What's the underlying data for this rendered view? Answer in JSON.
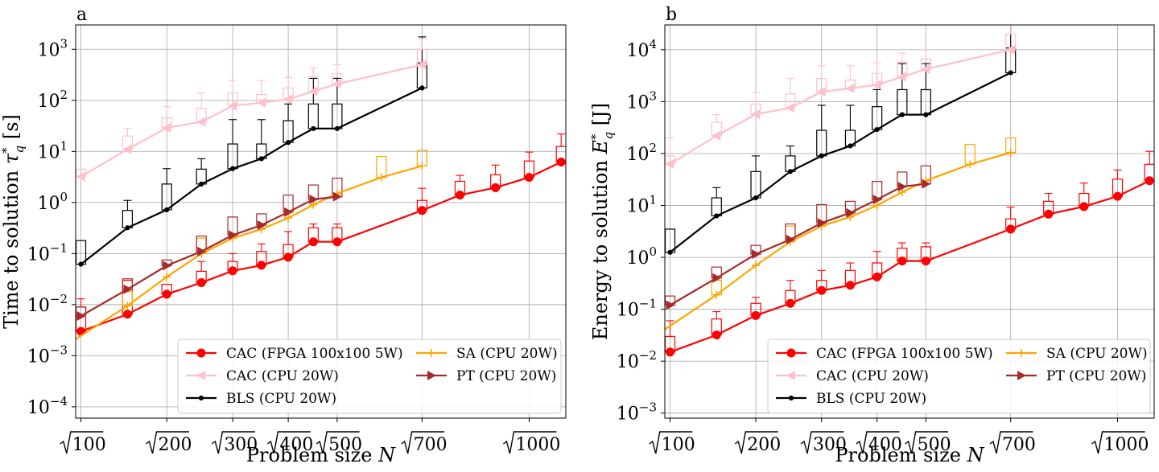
{
  "chart_data": [
    {
      "type": "line",
      "panel_label": "a",
      "ylabel": "Time to solution τ*_q [s]",
      "ylabel_text": "Time to solution ",
      "ylabel_tau": "τ",
      "ylabel_sup": "*",
      "ylabel_sub": "q",
      "ylabel_unit": " [s]",
      "xlabel_text": "Problem size ",
      "xlabel_var": "N",
      "yscale": "log",
      "ylim": [
        6e-05,
        3000
      ],
      "yticks": [
        {
          "value": 0.0001,
          "base": "10",
          "exp": "−4"
        },
        {
          "value": 0.001,
          "base": "10",
          "exp": "−3"
        },
        {
          "value": 0.01,
          "base": "10",
          "exp": "−2"
        },
        {
          "value": 0.1,
          "base": "10",
          "exp": "−1"
        },
        {
          "value": 1,
          "base": "10",
          "exp": "0"
        },
        {
          "value": 10,
          "base": "10",
          "exp": "1"
        },
        {
          "value": 100,
          "base": "10",
          "exp": "2"
        },
        {
          "value": 1000,
          "base": "10",
          "exp": "3"
        }
      ],
      "xscale": "sqrt",
      "xlim": [
        95,
        1115
      ],
      "xticks": [
        {
          "value": 100,
          "label": "100"
        },
        {
          "value": 200,
          "label": "200"
        },
        {
          "value": 300,
          "label": "300"
        },
        {
          "value": 400,
          "label": "400"
        },
        {
          "value": 500,
          "label": "500"
        },
        {
          "value": 700,
          "label": "700"
        },
        {
          "value": 1000,
          "label": "1000"
        }
      ],
      "grid": true,
      "legend_position": "bottom-right",
      "series": [
        {
          "name": "CAC (FPGA 100x100 5W)",
          "color": "#ff0000",
          "marker": "circle",
          "x": [
            100,
            150,
            200,
            250,
            300,
            350,
            400,
            450,
            500,
            700,
            800,
            900,
            1000,
            1100
          ],
          "y": [
            0.003,
            0.0065,
            0.016,
            0.027,
            0.046,
            0.059,
            0.085,
            0.17,
            0.17,
            0.7,
            1.4,
            1.95,
            3.1,
            6.2
          ]
        },
        {
          "name": "CAC (CPU 20W)",
          "color": "#ffc0cb",
          "marker": "triangle-left",
          "x": [
            100,
            150,
            200,
            250,
            300,
            350,
            400,
            450,
            500,
            700
          ],
          "y": [
            3.2,
            11,
            29,
            38,
            78,
            90,
            105,
            150,
            210,
            500
          ]
        },
        {
          "name": "BLS (CPU 20W)",
          "color": "#000000",
          "marker": "small-circle",
          "x": [
            100,
            150,
            200,
            250,
            300,
            350,
            400,
            450,
            500,
            700
          ],
          "y": [
            0.062,
            0.32,
            0.72,
            2.3,
            4.6,
            7.2,
            15,
            28,
            28,
            175
          ]
        },
        {
          "name": "SA (CPU 20W)",
          "color": "#ffa500",
          "marker": "plus",
          "x": [
            90,
            150,
            200,
            250,
            300,
            350,
            400,
            450,
            500,
            600,
            700
          ],
          "y": [
            0.0018,
            0.0095,
            0.035,
            0.1,
            0.2,
            0.3,
            0.5,
            0.9,
            1.5,
            3.1,
            5.2
          ]
        },
        {
          "name": "PT (CPU 20W)",
          "color": "#a52a2a",
          "marker": "triangle-right",
          "x": [
            100,
            150,
            200,
            250,
            300,
            350,
            400,
            450,
            500
          ],
          "y": [
            0.006,
            0.02,
            0.058,
            0.11,
            0.23,
            0.36,
            0.65,
            1.15,
            1.3
          ]
        }
      ],
      "boxes": [
        {
          "color": "#000000",
          "x": [
            100,
            150,
            200,
            250,
            300,
            350,
            400,
            450,
            500,
            700
          ],
          "q1": [
            0.062,
            0.32,
            0.72,
            2.3,
            4.6,
            7.2,
            15,
            28,
            28,
            175
          ],
          "q3": [
            0.18,
            0.7,
            2.3,
            4.5,
            14,
            14,
            40,
            85,
            85,
            540
          ],
          "whisker": [
            null,
            1.1,
            4.6,
            7.2,
            42,
            42,
            85,
            270,
            270,
            1750
          ]
        },
        {
          "color": "#ffc0cb",
          "x": [
            100,
            150,
            200,
            250,
            300,
            350,
            400,
            450,
            500,
            700
          ],
          "q1": [
            3.2,
            11,
            29,
            38,
            78,
            90,
            105,
            150,
            210,
            500
          ],
          "q3": [
            4.5,
            20,
            45,
            70,
            140,
            130,
            175,
            290,
            330,
            1000
          ],
          "whisker": [
            null,
            28,
            75,
            140,
            245,
            245,
            280,
            430,
            500,
            1600
          ]
        },
        {
          "color": "#ff0000",
          "x": [
            100,
            150,
            200,
            250,
            300,
            350,
            400,
            450,
            500,
            700,
            800,
            900,
            1000,
            1100
          ],
          "q1": [
            0.003,
            0.0065,
            0.016,
            0.027,
            0.046,
            0.059,
            0.085,
            0.17,
            0.17,
            0.7,
            1.4,
            1.95,
            3.1,
            6.2
          ],
          "q3": [
            0.009,
            0.03,
            0.025,
            0.045,
            0.07,
            0.11,
            0.15,
            0.32,
            0.32,
            1.1,
            2.6,
            3.5,
            6.5,
            12.5
          ],
          "whisker": [
            0.013,
            null,
            null,
            0.07,
            0.1,
            0.155,
            0.27,
            0.38,
            0.38,
            1.9,
            3.4,
            5.4,
            9.7,
            22
          ]
        },
        {
          "color": "#ffa500",
          "x": [
            150,
            250,
            600,
            700
          ],
          "q1": [
            0.0095,
            0.1,
            3.1,
            5.2
          ],
          "q3": [
            0.018,
            0.2,
            8,
            10.5
          ],
          "whisker": [
            null,
            null,
            null,
            null
          ]
        },
        {
          "color": "#a52a2a",
          "x": [
            100,
            150,
            200,
            250,
            300,
            350,
            400,
            450,
            500
          ],
          "q1": [
            0.006,
            0.02,
            0.058,
            0.11,
            0.23,
            0.36,
            0.65,
            1.15,
            1.3
          ],
          "q3": [
            0.009,
            0.032,
            0.075,
            0.22,
            0.52,
            0.6,
            1.4,
            2.2,
            3
          ],
          "whisker": [
            null,
            null,
            null,
            null,
            null,
            null,
            null,
            null,
            null
          ]
        }
      ]
    },
    {
      "type": "line",
      "panel_label": "b",
      "ylabel": "Energy to solution E*_q [J]",
      "ylabel_text": "Energy to solution ",
      "ylabel_tau": "E",
      "ylabel_sup": "*",
      "ylabel_sub": "q",
      "ylabel_unit": " [J]",
      "xlabel_text": "Problem size ",
      "xlabel_var": "N",
      "yscale": "log",
      "ylim": [
        0.0008,
        30000
      ],
      "yticks": [
        {
          "value": 0.001,
          "base": "10",
          "exp": "−3"
        },
        {
          "value": 0.01,
          "base": "10",
          "exp": "−2"
        },
        {
          "value": 0.1,
          "base": "10",
          "exp": "−1"
        },
        {
          "value": 1,
          "base": "10",
          "exp": "0"
        },
        {
          "value": 10,
          "base": "10",
          "exp": "1"
        },
        {
          "value": 100,
          "base": "10",
          "exp": "2"
        },
        {
          "value": 1000,
          "base": "10",
          "exp": "3"
        },
        {
          "value": 10000,
          "base": "10",
          "exp": "4"
        }
      ],
      "xscale": "sqrt",
      "xlim": [
        95,
        1115
      ],
      "xticks": [
        {
          "value": 100,
          "label": "100"
        },
        {
          "value": 200,
          "label": "200"
        },
        {
          "value": 300,
          "label": "300"
        },
        {
          "value": 400,
          "label": "400"
        },
        {
          "value": 500,
          "label": "500"
        },
        {
          "value": 700,
          "label": "700"
        },
        {
          "value": 1000,
          "label": "1000"
        }
      ],
      "grid": true,
      "legend_position": "bottom-right",
      "series": [
        {
          "name": "CAC (FPGA 100x100 5W)",
          "color": "#ff0000",
          "marker": "circle",
          "x": [
            100,
            150,
            200,
            250,
            300,
            350,
            400,
            450,
            500,
            700,
            800,
            900,
            1000,
            1100
          ],
          "y": [
            0.015,
            0.032,
            0.076,
            0.13,
            0.23,
            0.29,
            0.42,
            0.85,
            0.85,
            3.5,
            6.8,
            9.5,
            15,
            30
          ]
        },
        {
          "name": "CAC (CPU 20W)",
          "color": "#ffc0cb",
          "marker": "triangle-left",
          "x": [
            100,
            150,
            200,
            250,
            300,
            350,
            400,
            450,
            500,
            700
          ],
          "y": [
            63,
            220,
            570,
            760,
            1550,
            1800,
            2100,
            3000,
            4200,
            10000
          ]
        },
        {
          "name": "BLS (CPU 20W)",
          "color": "#000000",
          "marker": "small-circle",
          "x": [
            100,
            150,
            200,
            250,
            300,
            350,
            400,
            450,
            500,
            700
          ],
          "y": [
            1.25,
            6.3,
            14,
            45,
            90,
            140,
            290,
            560,
            560,
            3600
          ]
        },
        {
          "name": "SA (CPU 20W)",
          "color": "#ffa500",
          "marker": "plus",
          "x": [
            90,
            150,
            200,
            250,
            300,
            350,
            400,
            450,
            500,
            600,
            700
          ],
          "y": [
            0.035,
            0.19,
            0.7,
            2,
            4,
            6,
            10,
            18,
            30,
            62,
            104
          ]
        },
        {
          "name": "PT (CPU 20W)",
          "color": "#a52a2a",
          "marker": "triangle-right",
          "x": [
            100,
            150,
            200,
            250,
            300,
            350,
            400,
            450,
            500
          ],
          "y": [
            0.12,
            0.4,
            1.15,
            2.2,
            4.6,
            7.2,
            13,
            23,
            26
          ]
        }
      ],
      "boxes": [
        {
          "color": "#000000",
          "x": [
            100,
            150,
            200,
            250,
            300,
            350,
            400,
            450,
            500,
            700
          ],
          "q1": [
            1.25,
            6.3,
            14,
            45,
            90,
            140,
            290,
            560,
            560,
            3600
          ],
          "q3": [
            3.5,
            14,
            45,
            90,
            280,
            280,
            800,
            1700,
            1700,
            10800
          ],
          "whisker": [
            null,
            22,
            90,
            140,
            850,
            850,
            1700,
            5400,
            5400,
            35000
          ]
        },
        {
          "color": "#ffc0cb",
          "x": [
            100,
            150,
            200,
            250,
            300,
            350,
            400,
            450,
            500,
            700
          ],
          "q1": [
            63,
            220,
            570,
            760,
            1550,
            1800,
            2100,
            3000,
            4200,
            10000
          ],
          "q3": [
            90,
            400,
            900,
            1400,
            2800,
            2600,
            3500,
            5800,
            6600,
            20000
          ],
          "whisker": [
            200,
            560,
            1500,
            2800,
            4900,
            4900,
            5600,
            8600,
            10000,
            32000
          ]
        },
        {
          "color": "#ff0000",
          "x": [
            100,
            150,
            200,
            250,
            300,
            350,
            400,
            450,
            500,
            700,
            800,
            900,
            1000,
            1100
          ],
          "q1": [
            0.015,
            0.032,
            0.076,
            0.13,
            0.23,
            0.29,
            0.42,
            0.85,
            0.85,
            3.5,
            6.8,
            9.5,
            15,
            30
          ],
          "q3": [
            0.03,
            0.065,
            0.13,
            0.23,
            0.36,
            0.56,
            0.78,
            1.5,
            1.6,
            5.5,
            12,
            17,
            32,
            62
          ],
          "whisker": [
            0.06,
            0.09,
            0.17,
            0.36,
            0.56,
            0.78,
            1.3,
            1.9,
            1.9,
            9.3,
            17,
            27,
            48,
            110
          ]
        },
        {
          "color": "#ffa500",
          "x": [
            150,
            250,
            600,
            700
          ],
          "q1": [
            0.19,
            2,
            62,
            104
          ],
          "q3": [
            0.36,
            4,
            150,
            200
          ],
          "whisker": [
            null,
            null,
            null,
            null
          ]
        },
        {
          "color": "#a52a2a",
          "x": [
            100,
            150,
            200,
            250,
            300,
            350,
            400,
            450,
            500
          ],
          "q1": [
            0.12,
            0.4,
            1.15,
            2.2,
            4.6,
            7.2,
            13,
            23,
            26
          ],
          "q3": [
            0.18,
            0.65,
            1.7,
            4.4,
            10.4,
            12,
            29,
            44,
            58
          ],
          "whisker": [
            null,
            null,
            null,
            null,
            null,
            null,
            null,
            null,
            null
          ]
        }
      ]
    }
  ],
  "legend": {
    "columns": [
      [
        "CAC (FPGA 100x100 5W)",
        "CAC (CPU 20W)",
        "BLS (CPU 20W)"
      ],
      [
        "SA (CPU 20W)",
        "PT (CPU 20W)"
      ]
    ]
  }
}
